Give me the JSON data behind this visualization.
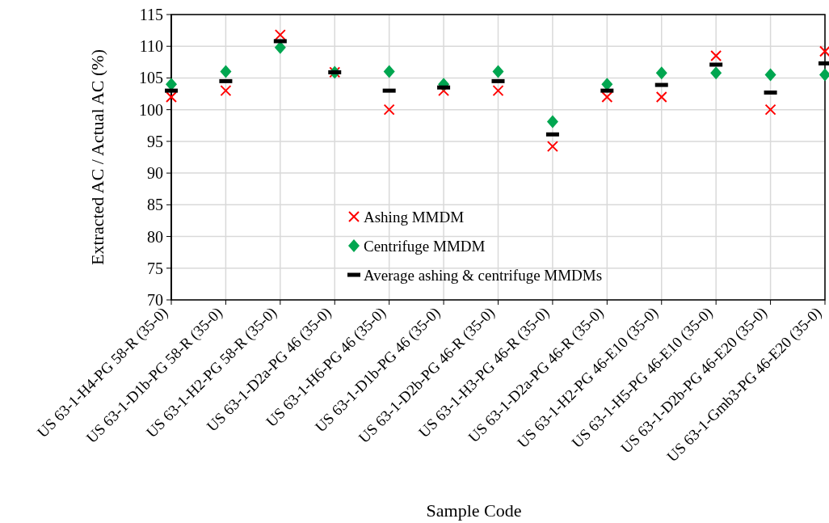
{
  "chart_data": {
    "type": "scatter",
    "xlabel": "Sample Code",
    "ylabel": "Extracted AC / Actual AC (%)",
    "categories": [
      "US 63-1-H4-PG 58-R (35-0)",
      "US 63-1-D1b-PG 58-R (35-0)",
      "US 63-1-H2-PG 58-R (35-0)",
      "US 63-1-D2a-PG 46 (35-0)",
      "US 63-1-H6-PG 46 (35-0)",
      "US 63-1-D1b-PG 46 (35-0)",
      "US 63-1-D2b-PG 46-R (35-0)",
      "US 63-1-H3-PG 46-R (35-0)",
      "US 63-1-D2a-PG 46-R (35-0)",
      "US 63-1-H2-PG 46-E10 (35-0)",
      "US 63-1-H5-PG 46-E10 (35-0)",
      "US 63-1-D2b-PG 46-E20 (35-0)",
      "US 63-1-Gmb3-PG 46-E20 (35-0)"
    ],
    "series": [
      {
        "name": "Ashing MMDM",
        "color": "#ff0000",
        "marker": "cross",
        "values": [
          102,
          103,
          111.8,
          105.9,
          100,
          103,
          103,
          94.2,
          102,
          102,
          108.5,
          100,
          109.2
        ]
      },
      {
        "name": "Centrifuge MMDM",
        "color": "#00a650",
        "marker": "diamond",
        "values": [
          104,
          106,
          109.8,
          105.9,
          106,
          104,
          106,
          98.1,
          104,
          105.8,
          105.8,
          105.5,
          105.5
        ]
      },
      {
        "name": "Average ashing & centrifuge MMDMs",
        "color": "#000000",
        "values": [
          103,
          104.5,
          110.8,
          105.9,
          103,
          103.5,
          104.5,
          96.1,
          103,
          103.9,
          107.1,
          102.7,
          107.3
        ]
      }
    ],
    "ylim": [
      70,
      115
    ],
    "yticks": [
      70,
      75,
      80,
      85,
      90,
      95,
      100,
      105,
      110,
      115
    ],
    "grid": true,
    "legend": "center"
  }
}
